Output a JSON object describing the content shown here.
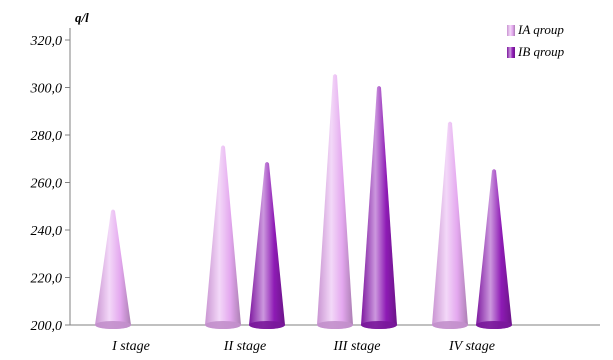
{
  "chart_data": {
    "type": "bar",
    "bar_shape": "cone",
    "ylabel": "q/l",
    "ylim": [
      200,
      320
    ],
    "ytick_step": 20,
    "ytick_labels": [
      "200,0",
      "220,0",
      "240,0",
      "260,0",
      "280,0",
      "300,0",
      "320,0"
    ],
    "grid": false,
    "legend_position": "top-right",
    "categories": [
      "I stage",
      "II stage",
      "III stage",
      "IV stage"
    ],
    "series": [
      {
        "name": "IA qroup",
        "color": "#e4a8ef",
        "values": [
          248,
          275,
          305,
          285
        ]
      },
      {
        "name": "IB qroup",
        "color": "#8e1bb5",
        "values": [
          null,
          268,
          300,
          265
        ]
      }
    ]
  }
}
